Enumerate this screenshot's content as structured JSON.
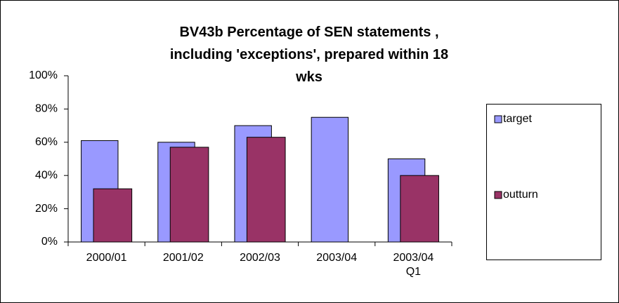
{
  "chart_data": {
    "type": "bar",
    "title": "BV43b Percentage of SEN statements , including 'exceptions', prepared within 18 wks",
    "categories": [
      "2000/01",
      "2001/02",
      "2002/03",
      "2003/04",
      "2003/04 Q1"
    ],
    "series": [
      {
        "name": "target",
        "color": "#9999ff",
        "values": [
          61,
          60,
          70,
          75,
          50
        ]
      },
      {
        "name": "outturn",
        "color": "#993366",
        "values": [
          32,
          57,
          63,
          null,
          40
        ]
      }
    ],
    "ylim": [
      0,
      100
    ],
    "yticks": [
      {
        "value": 0,
        "label": "0%"
      },
      {
        "value": 20,
        "label": "20%"
      },
      {
        "value": 40,
        "label": "40%"
      },
      {
        "value": 60,
        "label": "60%"
      },
      {
        "value": 80,
        "label": "80%"
      },
      {
        "value": 100,
        "label": "100%"
      }
    ],
    "legend": "right"
  }
}
